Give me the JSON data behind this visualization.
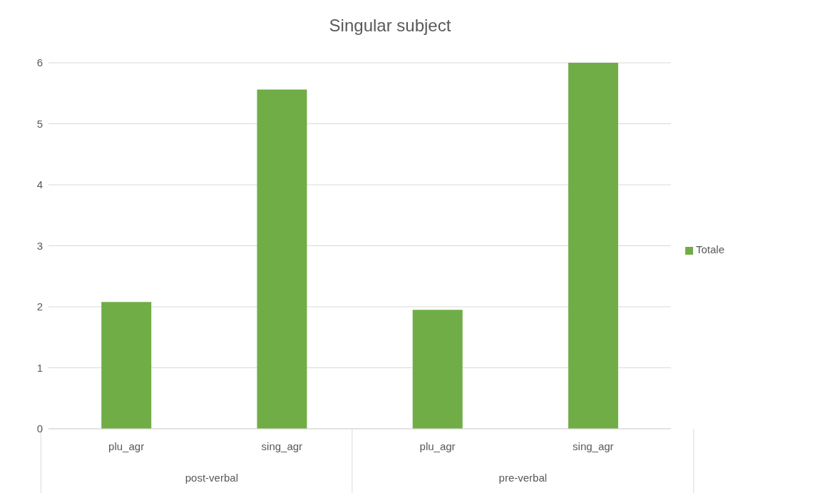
{
  "chart_data": {
    "type": "bar",
    "title": "Singular subject",
    "categories": [
      "plu_agr",
      "sing_agr",
      "plu_agr",
      "sing_agr"
    ],
    "series": [
      {
        "name": "Totale",
        "color": "#70ad47",
        "values": [
          2.08,
          5.56,
          1.95,
          6.0
        ]
      }
    ],
    "annotations": [
      "post-verbal",
      "pre-verbal"
    ],
    "ylim": [
      0,
      6
    ],
    "yticks": [
      0,
      1,
      2,
      3,
      4,
      5,
      6
    ],
    "grid": "y",
    "legend": "right"
  }
}
